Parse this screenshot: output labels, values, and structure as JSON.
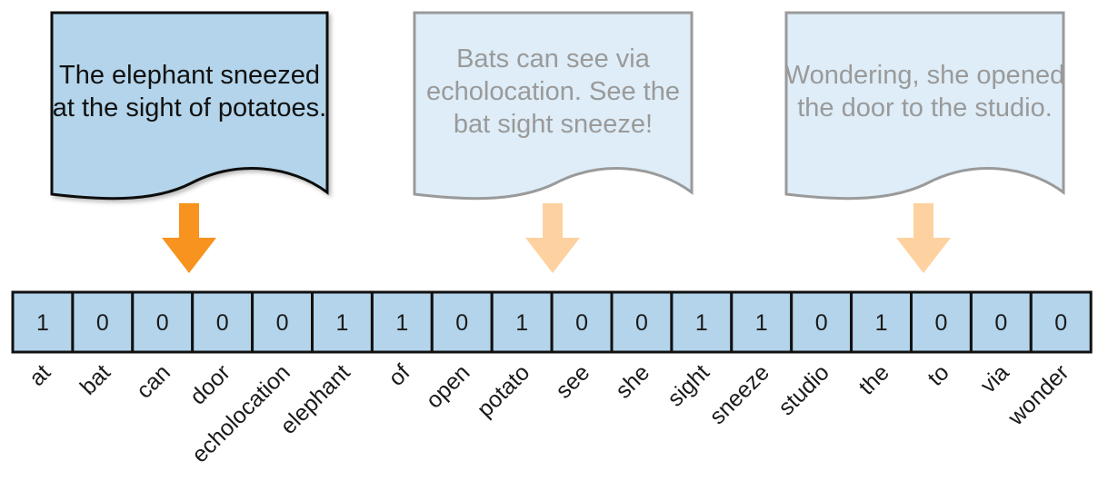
{
  "documents": [
    {
      "lines": [
        "The elephant sneezed",
        "at the sight of potatoes."
      ],
      "active": true
    },
    {
      "lines": [
        "Bats can see via",
        "echolocation. See the",
        "bat sight sneeze!"
      ],
      "active": false
    },
    {
      "lines": [
        "Wondering, she opened",
        "the door to the studio."
      ],
      "active": false
    }
  ],
  "vector": {
    "values": [
      "1",
      "0",
      "0",
      "0",
      "0",
      "1",
      "1",
      "0",
      "1",
      "0",
      "0",
      "1",
      "1",
      "0",
      "1",
      "0",
      "0",
      "0"
    ],
    "vocabulary": [
      "at",
      "bat",
      "can",
      "door",
      "echolocation",
      "elephant",
      "of",
      "open",
      "potato",
      "see",
      "she",
      "sight",
      "sneeze",
      "studio",
      "the",
      "to",
      "via",
      "wonder"
    ]
  },
  "colors": {
    "active_doc_fill": "#b3d4ea",
    "active_doc_stroke": "#111111",
    "active_doc_text": "#111111",
    "inactive_doc_fill": "#deedf7",
    "inactive_doc_stroke": "#9a9a9a",
    "inactive_doc_text": "#9a9a9a",
    "active_arrow": "#f7931e",
    "inactive_arrow": "#fdd2a0",
    "cell_fill": "#b3d4ea",
    "cell_stroke": "#111111"
  }
}
